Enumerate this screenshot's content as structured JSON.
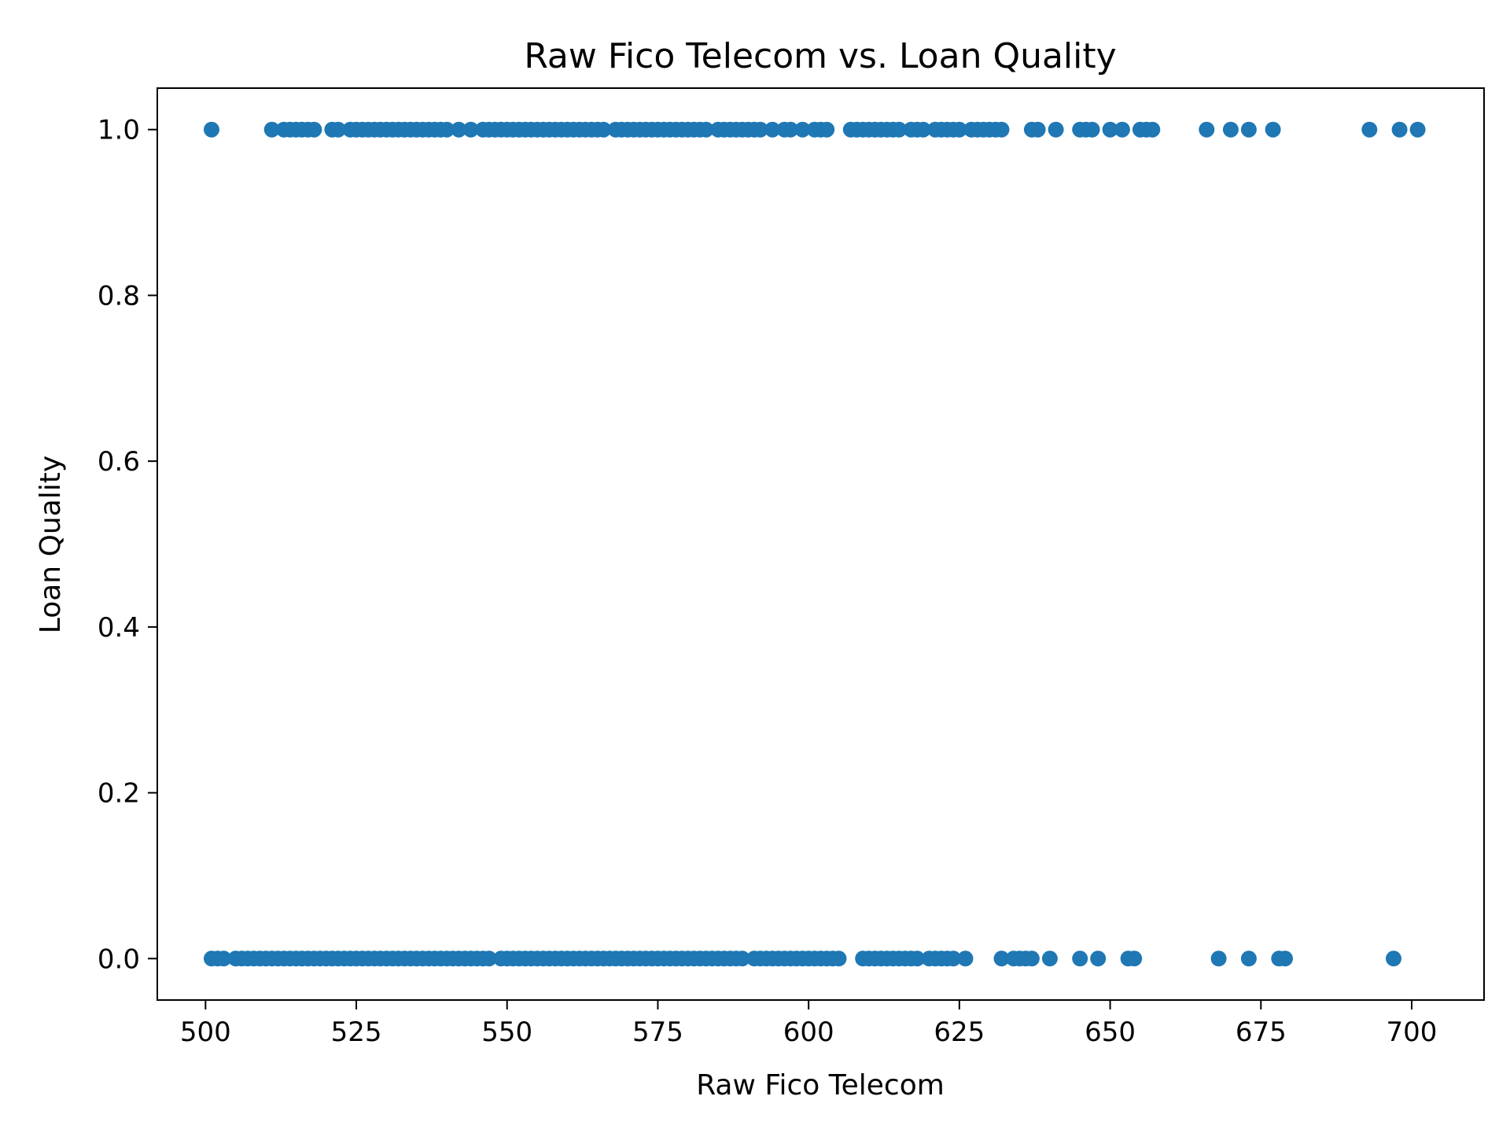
{
  "chart_data": {
    "type": "scatter",
    "title": "Raw Fico Telecom vs. Loan Quality",
    "xlabel": "Raw Fico Telecom",
    "ylabel": "Loan Quality",
    "xlim": [
      492,
      712
    ],
    "ylim": [
      -0.05,
      1.05
    ],
    "xticks": [
      500,
      525,
      550,
      575,
      600,
      625,
      650,
      675,
      700
    ],
    "yticks": [
      0.0,
      0.2,
      0.4,
      0.6,
      0.8,
      1.0
    ],
    "xtick_labels": [
      "500",
      "525",
      "550",
      "575",
      "600",
      "625",
      "650",
      "675",
      "700"
    ],
    "ytick_labels": [
      "0.0",
      "0.2",
      "0.4",
      "0.6",
      "0.8",
      "1.0"
    ],
    "grid": false,
    "color": "#1f77b4",
    "series": [
      {
        "y": 1,
        "x": [
          501,
          511,
          513,
          514,
          515,
          516,
          517,
          518,
          521,
          522,
          524,
          525,
          526,
          527,
          528,
          529,
          530,
          531,
          532,
          533,
          534,
          535,
          536,
          537,
          538,
          539,
          540,
          542,
          544,
          546,
          547,
          548,
          549,
          550,
          551,
          552,
          553,
          554,
          555,
          556,
          557,
          558,
          559,
          560,
          561,
          562,
          563,
          564,
          565,
          566,
          568,
          569,
          570,
          571,
          572,
          573,
          574,
          575,
          576,
          577,
          578,
          579,
          580,
          581,
          582,
          583,
          585,
          586,
          587,
          588,
          589,
          590,
          591,
          592,
          594,
          596,
          597,
          599,
          601,
          602,
          603,
          607,
          608,
          609,
          610,
          611,
          612,
          613,
          614,
          615,
          617,
          618,
          619,
          621,
          622,
          623,
          624,
          625,
          627,
          628,
          629,
          630,
          631,
          632,
          637,
          638,
          641,
          645,
          646,
          647,
          650,
          652,
          655,
          656,
          657,
          666,
          670,
          673,
          677,
          693,
          698,
          701
        ]
      },
      {
        "y": 0,
        "x": [
          501,
          502,
          503,
          505,
          506,
          507,
          508,
          509,
          510,
          511,
          512,
          513,
          514,
          515,
          516,
          517,
          518,
          519,
          520,
          521,
          522,
          523,
          524,
          525,
          526,
          527,
          528,
          529,
          530,
          531,
          532,
          533,
          534,
          535,
          536,
          537,
          538,
          539,
          540,
          541,
          542,
          543,
          544,
          545,
          546,
          547,
          549,
          550,
          551,
          552,
          553,
          554,
          555,
          556,
          557,
          558,
          559,
          560,
          561,
          562,
          563,
          564,
          565,
          566,
          567,
          568,
          569,
          570,
          571,
          572,
          573,
          574,
          575,
          576,
          577,
          578,
          579,
          580,
          581,
          582,
          583,
          584,
          585,
          586,
          587,
          588,
          589,
          591,
          592,
          593,
          594,
          595,
          596,
          597,
          598,
          599,
          600,
          601,
          602,
          603,
          604,
          605,
          609,
          610,
          611,
          612,
          613,
          614,
          615,
          616,
          617,
          618,
          620,
          621,
          622,
          623,
          624,
          626,
          632,
          634,
          635,
          636,
          637,
          640,
          645,
          648,
          653,
          654,
          668,
          673,
          678,
          679,
          697
        ]
      }
    ]
  }
}
